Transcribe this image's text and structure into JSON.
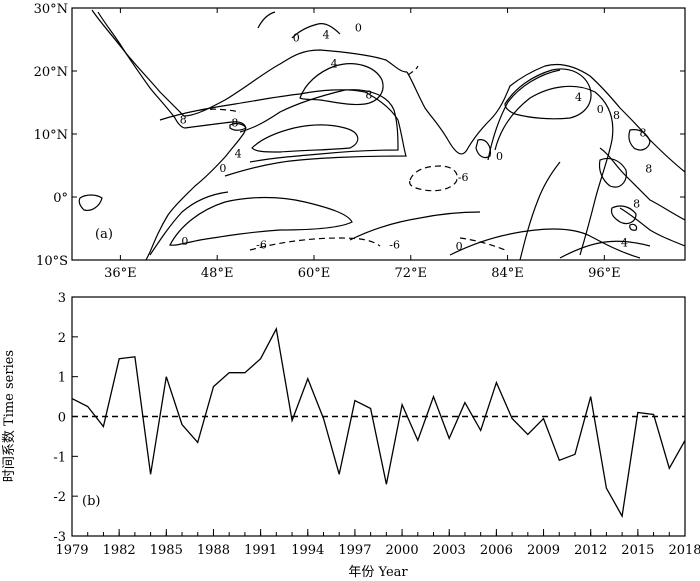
{
  "chart_data": [
    {
      "type": "contour-map",
      "panel_label": "(a)",
      "lon_ticks": [
        "36°E",
        "48°E",
        "60°E",
        "72°E",
        "84°E",
        "96°E"
      ],
      "lat_ticks": [
        "30°N",
        "20°N",
        "10°N",
        "0°",
        "10°S"
      ],
      "xlim": [
        30,
        106
      ],
      "ylim": [
        -10,
        30
      ],
      "contour_labels": [
        {
          "text": "0",
          "lon": 57.8,
          "lat": 25.3
        },
        {
          "text": "4",
          "lon": 61.5,
          "lat": 25.8
        },
        {
          "text": "0",
          "lon": 65.5,
          "lat": 26.9
        },
        {
          "text": "4",
          "lon": 62.5,
          "lat": 21.2
        },
        {
          "text": "8",
          "lon": 66.8,
          "lat": 16.3
        },
        {
          "text": "8",
          "lon": 43.8,
          "lat": 12.3
        },
        {
          "text": "8",
          "lon": 50.2,
          "lat": 11.8
        },
        {
          "text": "4",
          "lon": 50.6,
          "lat": 6.9
        },
        {
          "text": "0",
          "lon": 48.7,
          "lat": 4.6
        },
        {
          "text": "-6",
          "lon": 78.5,
          "lat": 3.2
        },
        {
          "text": "0",
          "lon": 44.0,
          "lat": -7.0
        },
        {
          "text": "-6",
          "lon": 53.5,
          "lat": -7.5
        },
        {
          "text": "-6",
          "lon": 70.0,
          "lat": -7.5
        },
        {
          "text": "0",
          "lon": 83.0,
          "lat": 6.5
        },
        {
          "text": "0",
          "lon": 95.5,
          "lat": 14.0
        },
        {
          "text": "4",
          "lon": 92.8,
          "lat": 15.9
        },
        {
          "text": "8",
          "lon": 97.5,
          "lat": 13.0
        },
        {
          "text": "8",
          "lon": 100.8,
          "lat": 10.2
        },
        {
          "text": "8",
          "lon": 101.5,
          "lat": 4.5
        },
        {
          "text": "8",
          "lon": 100.0,
          "lat": -1.0
        },
        {
          "text": "4",
          "lon": 98.5,
          "lat": -7.2
        },
        {
          "text": "0",
          "lon": 78.0,
          "lat": -7.8
        }
      ]
    },
    {
      "type": "line",
      "panel_label": "(b)",
      "xlabel": "年份 Year",
      "ylabel": "时间系数 Time series",
      "x": [
        1979,
        1980,
        1981,
        1982,
        1983,
        1984,
        1985,
        1986,
        1987,
        1988,
        1989,
        1990,
        1991,
        1992,
        1993,
        1994,
        1995,
        1996,
        1997,
        1998,
        1999,
        2000,
        2001,
        2002,
        2003,
        2004,
        2005,
        2006,
        2007,
        2008,
        2009,
        2010,
        2011,
        2012,
        2013,
        2014,
        2015,
        2016,
        2017,
        2018
      ],
      "y": [
        0.45,
        0.25,
        -0.25,
        1.45,
        1.5,
        -1.45,
        1.0,
        -0.2,
        -0.65,
        0.75,
        1.1,
        1.1,
        1.45,
        2.2,
        -0.1,
        0.95,
        -0.05,
        -1.45,
        0.4,
        0.2,
        -1.7,
        0.3,
        -0.6,
        0.5,
        -0.55,
        0.35,
        -0.35,
        0.85,
        -0.05,
        -0.45,
        -0.05,
        -1.1,
        -0.95,
        0.5,
        -1.8,
        -2.5,
        0.1,
        0.05,
        -1.3,
        -0.6
      ],
      "xticks": [
        "1979",
        "1982",
        "1985",
        "1988",
        "1991",
        "1994",
        "1997",
        "2000",
        "2003",
        "2006",
        "2009",
        "2012",
        "2015",
        "2018"
      ],
      "yticks": [
        "3",
        "2",
        "1",
        "0",
        "-1",
        "-2",
        "-3"
      ],
      "xlim": [
        1979,
        2018
      ],
      "ylim": [
        -3,
        3
      ],
      "reference_line": {
        "y": 0,
        "style": "dashed"
      }
    }
  ]
}
